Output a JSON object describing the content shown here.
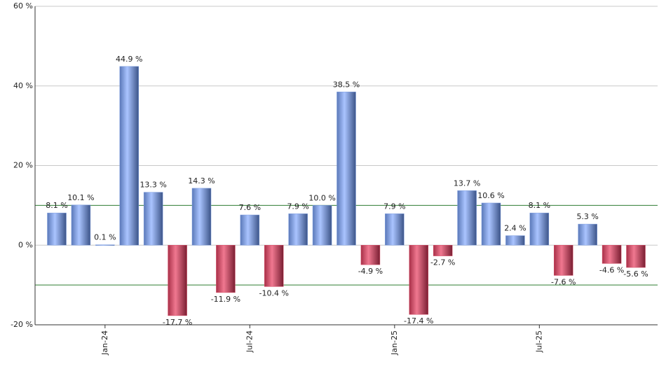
{
  "chart_data": {
    "type": "bar",
    "categories": [
      null,
      null,
      "Jan-24",
      null,
      null,
      null,
      null,
      null,
      "Jul-24",
      null,
      null,
      null,
      null,
      null,
      "Jan-25",
      null,
      null,
      null,
      null,
      null,
      "Jul-25",
      null,
      null,
      null,
      null
    ],
    "values": [
      8.1,
      10.1,
      0.1,
      44.9,
      13.3,
      -17.7,
      14.3,
      -11.9,
      7.6,
      -10.4,
      7.9,
      10.0,
      38.5,
      -4.9,
      7.9,
      -17.4,
      -2.7,
      13.7,
      10.6,
      2.4,
      8.1,
      -7.6,
      5.3,
      -4.6,
      -5.6
    ],
    "value_labels": [
      "8.1 %",
      "10.1 %",
      "0.1 %",
      "44.9 %",
      "13.3 %",
      "-17.7 %",
      "14.3 %",
      "-11.9 %",
      "7.6 %",
      "-10.4 %",
      "7.9 %",
      "10.0 %",
      "38.5 %",
      "-4.9 %",
      "7.9 %",
      "-17.4 %",
      "-2.7 %",
      "13.7 %",
      "10.6 %",
      "2.4 %",
      "8.1 %",
      "-7.6 %",
      "5.3 %",
      "-4.6 %",
      "-5.6 %"
    ],
    "positive_color": "#7f9fe0",
    "negative_color": "#d8506a",
    "ylim": [
      -20,
      60
    ],
    "yticks": [
      {
        "value": -20,
        "label": "-20 %"
      },
      {
        "value": 0,
        "label": "0 %"
      },
      {
        "value": 20,
        "label": "20 %"
      },
      {
        "value": 40,
        "label": "40 %"
      },
      {
        "value": 60,
        "label": "60 %"
      }
    ],
    "reference_lines": [
      10,
      -10
    ],
    "reference_color": "#2e7d32",
    "grid": true
  }
}
